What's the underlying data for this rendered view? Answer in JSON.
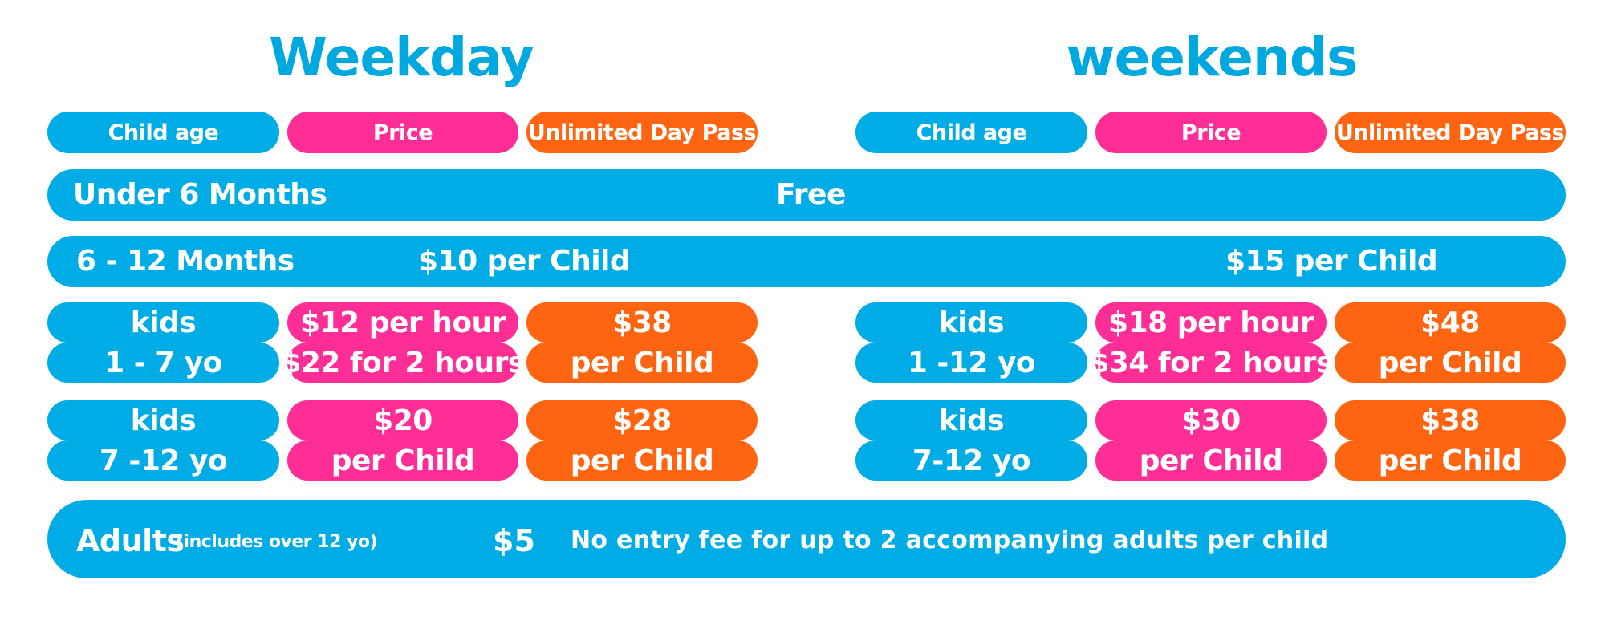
{
  "weekday": {
    "title": "Weekday",
    "headers": [
      "Child age",
      "Price",
      "Unlimited Day Pass"
    ],
    "rows": [
      {
        "age": [
          "kids",
          "1 - 7 yo"
        ],
        "price": [
          "$12 per hour",
          "$22 for 2 hours"
        ],
        "pass": [
          "$38",
          "per Child"
        ]
      },
      {
        "age": [
          "kids",
          "7 -12 yo"
        ],
        "price": [
          "$20",
          "per Child"
        ],
        "pass": [
          "$28",
          "per Child"
        ]
      }
    ]
  },
  "weekends": {
    "title": "weekends",
    "headers": [
      "Child age",
      "Price",
      "Unlimited Day Pass"
    ],
    "rows": [
      {
        "age": [
          "kids",
          "1 -12 yo"
        ],
        "price": [
          "$18 per hour",
          "$34 for 2 hours"
        ],
        "pass": [
          "$48",
          "per Child"
        ]
      },
      {
        "age": [
          "kids",
          "7-12 yo"
        ],
        "price": [
          "$30",
          "per Child"
        ],
        "pass": [
          "$38",
          "per Child"
        ]
      }
    ]
  },
  "under6": {
    "label": "Under 6 Months",
    "value": "Free"
  },
  "months6to12": {
    "label": "6 - 12 Months",
    "weekday": "$10 per Child",
    "weekends": "$15 per Child"
  },
  "adults": {
    "label": "Adults",
    "note": "(includes over 12 yo)",
    "price": "$5",
    "message": "No entry fee for up to 2 accompanying adults per child"
  },
  "colors": {
    "blue": "#00ace6",
    "pink": "#ff2d96",
    "orange": "#ff6410",
    "heading": "#00a8e0"
  }
}
